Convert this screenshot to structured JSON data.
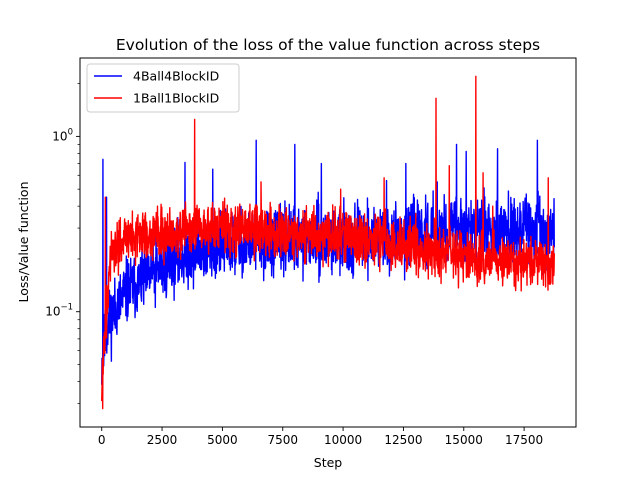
{
  "chart_data": {
    "type": "line",
    "title": "Evolution of the loss of the value function across steps",
    "xlabel": "Step",
    "ylabel": "Loss/Value function",
    "xlim": [
      -900,
      19650
    ],
    "ylim": [
      0.022,
      2.8
    ],
    "yscale": "log",
    "grid": false,
    "legend_position": "top-left",
    "x_ticks": [
      {
        "value": 0,
        "label": "0"
      },
      {
        "value": 2500,
        "label": "2500"
      },
      {
        "value": 5000,
        "label": "5000"
      },
      {
        "value": 7500,
        "label": "7500"
      },
      {
        "value": 10000,
        "label": "10000"
      },
      {
        "value": 12500,
        "label": "12500"
      },
      {
        "value": 15000,
        "label": "15000"
      },
      {
        "value": 17500,
        "label": "17500"
      }
    ],
    "y_ticks": [
      {
        "value": 0.1,
        "label": "10",
        "exp": "−1"
      },
      {
        "value": 1,
        "label": "10",
        "exp": "0"
      }
    ],
    "y_minor_ticks": [
      0.03,
      0.04,
      0.05,
      0.06,
      0.07,
      0.08,
      0.09,
      0.2,
      0.3,
      0.4,
      0.5,
      0.6,
      0.7,
      0.8,
      0.9,
      2
    ],
    "series": [
      {
        "name": "4Ball4BlockID",
        "color": "#0000ff",
        "x_range": [
          0,
          18750
        ],
        "trend": [
          [
            0,
            0.05
          ],
          [
            200,
            0.08
          ],
          [
            500,
            0.1
          ],
          [
            1000,
            0.13
          ],
          [
            2000,
            0.16
          ],
          [
            3000,
            0.2
          ],
          [
            4000,
            0.22
          ],
          [
            5000,
            0.24
          ],
          [
            7000,
            0.25
          ],
          [
            9000,
            0.26
          ],
          [
            11000,
            0.26
          ],
          [
            13000,
            0.27
          ],
          [
            15000,
            0.3
          ],
          [
            17000,
            0.3
          ],
          [
            18000,
            0.29
          ],
          [
            18750,
            0.27
          ]
        ],
        "spread": 0.45,
        "spikes": [
          [
            50,
            0.74
          ],
          [
            200,
            0.45
          ],
          [
            3450,
            0.71
          ],
          [
            4600,
            0.65
          ],
          [
            6400,
            0.95
          ],
          [
            8000,
            0.9
          ],
          [
            9100,
            0.7
          ],
          [
            11800,
            0.56
          ],
          [
            12600,
            0.7
          ],
          [
            13900,
            0.55
          ],
          [
            14700,
            0.9
          ],
          [
            15100,
            0.82
          ],
          [
            16400,
            0.85
          ],
          [
            18050,
            0.95
          ]
        ]
      },
      {
        "name": "1Ball1BlockID",
        "color": "#ff0000",
        "x_range": [
          0,
          18750
        ],
        "trend": [
          [
            0,
            0.035
          ],
          [
            100,
            0.06
          ],
          [
            300,
            0.18
          ],
          [
            800,
            0.26
          ],
          [
            2000,
            0.28
          ],
          [
            5000,
            0.3
          ],
          [
            8000,
            0.28
          ],
          [
            10000,
            0.27
          ],
          [
            12000,
            0.25
          ],
          [
            14000,
            0.22
          ],
          [
            16000,
            0.2
          ],
          [
            18000,
            0.19
          ],
          [
            18750,
            0.18
          ]
        ],
        "spread": 0.35,
        "spikes": [
          [
            40,
            0.028
          ],
          [
            150,
            0.45
          ],
          [
            3850,
            1.25
          ],
          [
            6600,
            0.55
          ],
          [
            9900,
            0.5
          ],
          [
            11700,
            0.58
          ],
          [
            13850,
            1.65
          ],
          [
            14400,
            0.68
          ],
          [
            15500,
            2.2
          ],
          [
            15800,
            0.62
          ],
          [
            16200,
            0.4
          ],
          [
            18500,
            0.58
          ]
        ]
      }
    ]
  }
}
